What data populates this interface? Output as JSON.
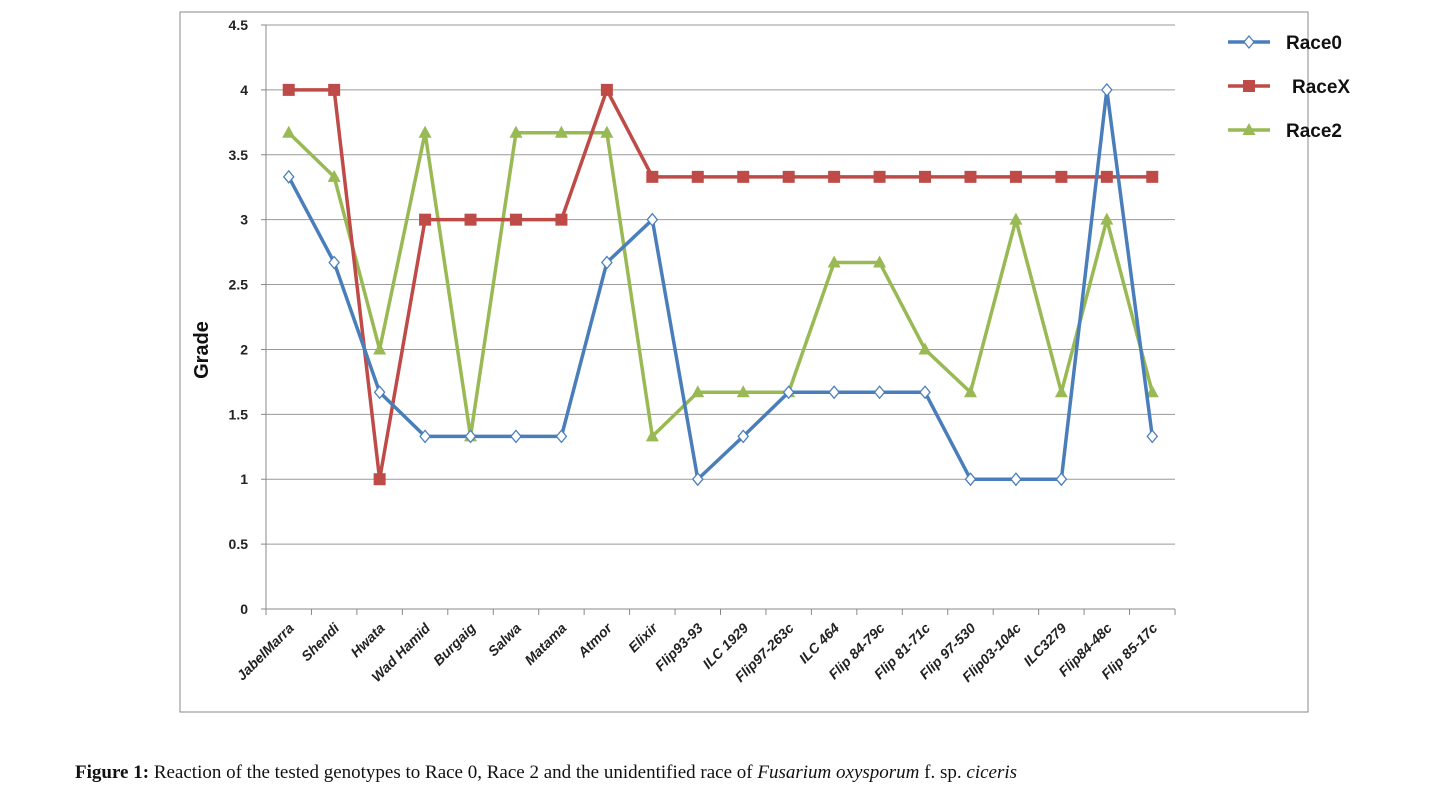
{
  "chart_data": {
    "type": "line",
    "title": "",
    "xlabel": "",
    "ylabel": "Grade",
    "ylim": [
      0,
      4.5
    ],
    "yticks": [
      "0",
      "0.5",
      "1",
      "1.5",
      "2",
      "2.5",
      "3",
      "3.5",
      "4",
      "4.5"
    ],
    "grid": true,
    "legend_position": "right",
    "categories": [
      "JabelMarra",
      "Shendi",
      "Hwata",
      "Wad Hamid",
      "Burgaig",
      "Salwa",
      "Matama",
      "Atmor",
      "Elixir",
      "Flip93-93",
      "ILC 1929",
      "Flip97-263c",
      "ILC 464",
      "Flip 84-79c",
      "Flip 81-71c",
      "Flip 97-530",
      "Flip03-104c",
      "ILC3279",
      "Flip84-48c",
      "Flip 85-17c"
    ],
    "series": [
      {
        "name": "Race0",
        "color": "#4a7ebb",
        "marker": "diamond",
        "values": [
          3.33,
          2.67,
          1.67,
          1.33,
          1.33,
          1.33,
          1.33,
          2.67,
          3,
          1,
          1.33,
          1.67,
          1.67,
          1.67,
          1.67,
          1,
          1,
          1,
          4,
          1.33
        ]
      },
      {
        "name": "RaceX",
        "color": "#be4b48",
        "marker": "square",
        "values": [
          4,
          4,
          1,
          3,
          3,
          3,
          3,
          4,
          3.33,
          3.33,
          3.33,
          3.33,
          3.33,
          3.33,
          3.33,
          3.33,
          3.33,
          3.33,
          3.33,
          3.33
        ]
      },
      {
        "name": "Race2",
        "color": "#98b954",
        "marker": "triangle",
        "values": [
          3.67,
          3.33,
          2,
          3.67,
          1.33,
          3.67,
          3.67,
          3.67,
          1.33,
          1.67,
          1.67,
          1.67,
          2.67,
          2.67,
          2,
          1.67,
          3,
          1.67,
          3,
          1.67
        ]
      }
    ]
  },
  "caption": {
    "label": "Figure 1:",
    "text": " Reaction of the tested genotypes to Race 0, Race 2 and the unidentified race of ",
    "italic1": "Fusarium oxysporum",
    "mid": " f. sp. ",
    "italic2": "ciceris"
  }
}
